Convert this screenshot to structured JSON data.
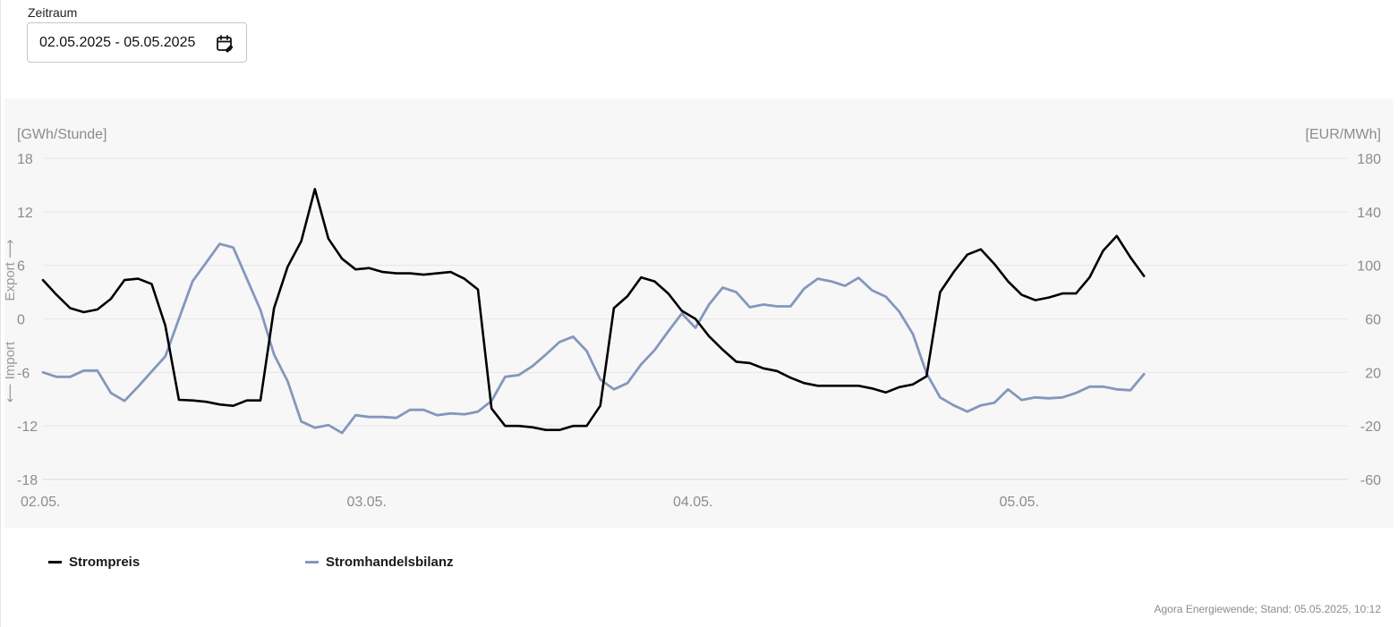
{
  "filter": {
    "label": "Zeitraum",
    "value": "02.05.2025 - 05.05.2025",
    "icon": "calendar-edit-icon"
  },
  "chart_data": {
    "type": "line",
    "left_axis": {
      "label": "[GWh/Stunde]",
      "ticks": [
        18,
        12,
        6,
        0,
        -6,
        -12,
        -18
      ],
      "range": [
        -18,
        18
      ],
      "annotation_export": "Export ⟶",
      "annotation_import": "⟵ Import"
    },
    "right_axis": {
      "label": "[EUR/MWh]",
      "ticks": [
        180,
        140,
        100,
        60,
        20,
        -20,
        -60
      ],
      "range": [
        -60,
        180
      ]
    },
    "x_axis": {
      "range": [
        0,
        96
      ],
      "ticks": [
        {
          "x": 0,
          "label": "02.05."
        },
        {
          "x": 24,
          "label": "03.05."
        },
        {
          "x": 48,
          "label": "04.05."
        },
        {
          "x": 72,
          "label": "05.05."
        }
      ]
    },
    "grid": true,
    "series": [
      {
        "name": "Strompreis",
        "axis": "right",
        "color": "#000000",
        "values": [
          89,
          78,
          68,
          65,
          67,
          75,
          89,
          90,
          86,
          55,
          -0.5,
          -1,
          -2,
          -4,
          -5,
          -1,
          -1,
          68,
          99,
          118,
          157,
          120,
          105,
          97,
          98,
          95,
          94,
          94,
          93,
          94,
          95,
          90,
          82,
          -7,
          -20,
          -20,
          -21,
          -23,
          -23,
          -20,
          -20,
          -5,
          68,
          77,
          91,
          88,
          79,
          66,
          60,
          47,
          37,
          28,
          27,
          23,
          21,
          16,
          12,
          10,
          10,
          10,
          10,
          8,
          5,
          9,
          11,
          17,
          80,
          95,
          108,
          112,
          101,
          88,
          78,
          74,
          76,
          79,
          79,
          91,
          111,
          122,
          106,
          92
        ]
      },
      {
        "name": "Stromhandelsbilanz",
        "axis": "left",
        "color": "#8497bd",
        "values": [
          -6,
          -6.5,
          -6.5,
          -5.8,
          -5.8,
          -8.3,
          -9.2,
          -7.6,
          -5.9,
          -4.2,
          0,
          4.2,
          6.3,
          8.4,
          8,
          4.5,
          1,
          -4,
          -7,
          -11.5,
          -12.2,
          -11.9,
          -12.8,
          -10.8,
          -11,
          -11,
          -11.1,
          -10.2,
          -10.2,
          -10.8,
          -10.6,
          -10.7,
          -10.4,
          -9.2,
          -6.5,
          -6.3,
          -5.3,
          -4,
          -2.6,
          -2,
          -3.6,
          -6.8,
          -7.9,
          -7.2,
          -5.1,
          -3.5,
          -1.4,
          0.6,
          -1,
          1.6,
          3.5,
          3,
          1.3,
          1.6,
          1.4,
          1.4,
          3.4,
          4.5,
          4.2,
          3.7,
          4.6,
          3.2,
          2.5,
          0.8,
          -1.7,
          -6.1,
          -8.8,
          -9.7,
          -10.4,
          -9.7,
          -9.4,
          -7.9,
          -9.1,
          -8.8,
          -8.9,
          -8.8,
          -8.3,
          -7.6,
          -7.6,
          -7.9,
          -8,
          -6.2
        ]
      }
    ]
  },
  "legend": {
    "items": [
      {
        "label": "Strompreis",
        "color": "#000000"
      },
      {
        "label": "Stromhandelsbilanz",
        "color": "#8497bd"
      }
    ]
  },
  "footer": {
    "source": "Agora Energiewende; Stand: 05.05.2025, 10:12"
  }
}
